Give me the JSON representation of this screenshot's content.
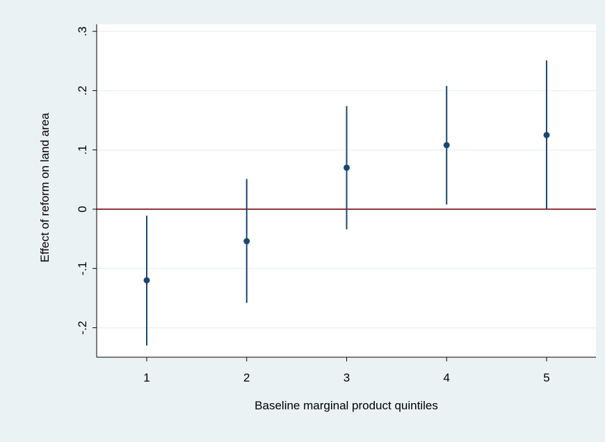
{
  "chart_data": {
    "type": "scatter",
    "subtype": "coefficient plot with confidence intervals",
    "title": "",
    "xlabel": "Baseline marginal product quintiles",
    "ylabel": "Effect of reform on land area",
    "x": [
      1,
      2,
      3,
      4,
      5
    ],
    "x_tick_labels": [
      "1",
      "2",
      "3",
      "4",
      "5"
    ],
    "y_tick_values": [
      -0.2,
      -0.1,
      0,
      0.1,
      0.2,
      0.3
    ],
    "y_tick_labels": [
      "-.2",
      "-.1",
      "0",
      ".1",
      ".2",
      ".3"
    ],
    "xlim": [
      0.5,
      5.5
    ],
    "ylim": [
      -0.248,
      0.3
    ],
    "series": [
      {
        "point": [
          -0.12,
          -0.054,
          0.07,
          0.108,
          0.125
        ],
        "ci_lower": [
          -0.23,
          -0.158,
          -0.034,
          0.008,
          0.0
        ],
        "ci_upper": [
          -0.011,
          0.051,
          0.174,
          0.208,
          0.251
        ]
      }
    ],
    "reference_line_y": 0,
    "grid": "horizontal",
    "legend": "none"
  },
  "colors": {
    "outer_background": "#eaf2f3",
    "plot_background": "#ffffff",
    "grid": "#eaf2f3",
    "marker": "#1a476f",
    "ci": "#1a476f",
    "reference_line": "#90353b",
    "axis": "#000000"
  }
}
